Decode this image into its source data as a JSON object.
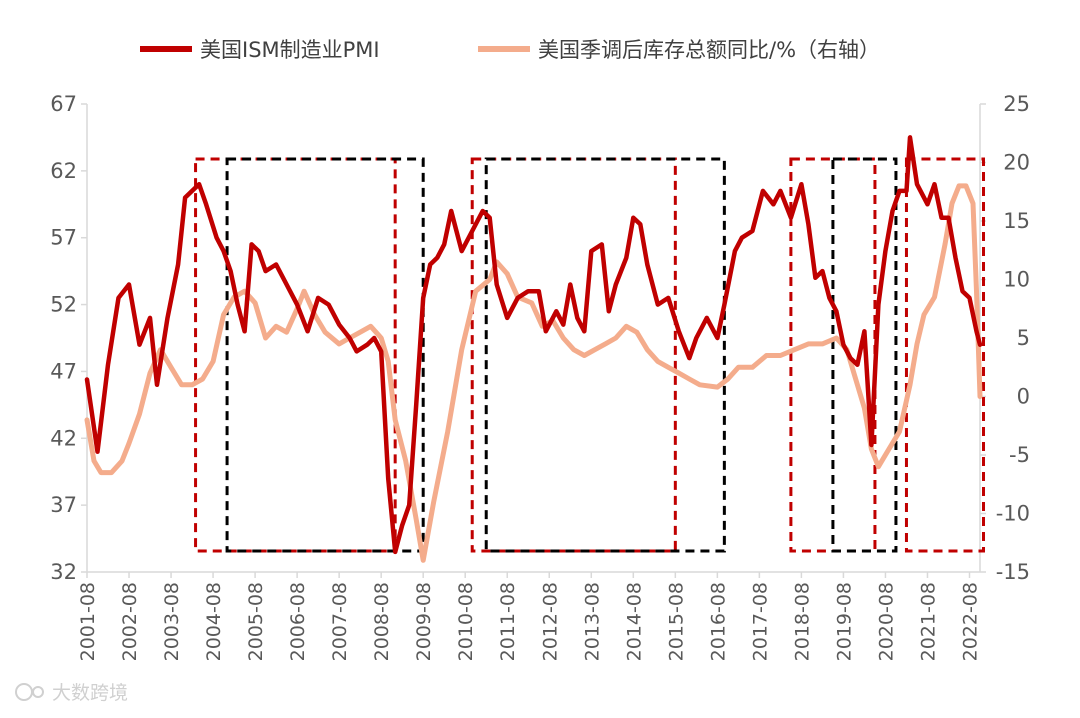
{
  "chart_data": {
    "type": "line",
    "colors": {
      "pmi": "#c00000",
      "inventory": "#f4ac8c",
      "box_red": "#c00000",
      "box_black": "#000000",
      "axis": "#d9d9d9",
      "tick_text": "#595959"
    },
    "left_axis": {
      "ylim": [
        32,
        67
      ],
      "ticks": [
        "32",
        "37",
        "42",
        "47",
        "52",
        "57",
        "62",
        "67"
      ]
    },
    "right_axis": {
      "ylim": [
        -15,
        25
      ],
      "ticks": [
        "-15",
        "-10",
        "-5",
        "0",
        "5",
        "10",
        "15",
        "20",
        "25"
      ]
    },
    "xlim": [
      "2001-08",
      "2022-11"
    ],
    "x_ticks": [
      "2001-08",
      "2002-08",
      "2003-08",
      "2004-08",
      "2005-08",
      "2006-08",
      "2007-08",
      "2008-08",
      "2009-08",
      "2010-08",
      "2011-08",
      "2012-08",
      "2013-08",
      "2014-08",
      "2015-08",
      "2016-08",
      "2017-08",
      "2018-08",
      "2019-08",
      "2020-08",
      "2021-08",
      "2022-08"
    ],
    "legend": {
      "position": "top-center"
    },
    "series": [
      {
        "name": "美国ISM制造业PMI",
        "axis": "left",
        "color": "#c00000",
        "points": [
          [
            "2001-08",
            46.4
          ],
          [
            "2001-11",
            41.0
          ],
          [
            "2002-02",
            47.5
          ],
          [
            "2002-05",
            52.5
          ],
          [
            "2002-08",
            53.5
          ],
          [
            "2002-11",
            49.0
          ],
          [
            "2003-02",
            51.0
          ],
          [
            "2003-04",
            46.0
          ],
          [
            "2003-07",
            51.0
          ],
          [
            "2003-10",
            55.0
          ],
          [
            "2003-12",
            60.0
          ],
          [
            "2004-02",
            60.5
          ],
          [
            "2004-04",
            61.0
          ],
          [
            "2004-06",
            59.5
          ],
          [
            "2004-09",
            57.0
          ],
          [
            "2004-11",
            56.0
          ],
          [
            "2005-01",
            54.5
          ],
          [
            "2005-03",
            52.0
          ],
          [
            "2005-05",
            50.0
          ],
          [
            "2005-07",
            56.5
          ],
          [
            "2005-09",
            56.0
          ],
          [
            "2005-11",
            54.5
          ],
          [
            "2006-02",
            55.0
          ],
          [
            "2006-05",
            53.5
          ],
          [
            "2006-08",
            52.0
          ],
          [
            "2006-11",
            50.0
          ],
          [
            "2007-02",
            52.5
          ],
          [
            "2007-05",
            52.0
          ],
          [
            "2007-08",
            50.5
          ],
          [
            "2007-11",
            49.5
          ],
          [
            "2008-01",
            48.5
          ],
          [
            "2008-04",
            49.0
          ],
          [
            "2008-06",
            49.5
          ],
          [
            "2008-08",
            48.5
          ],
          [
            "2008-10",
            39.0
          ],
          [
            "2008-12",
            33.5
          ],
          [
            "2009-02",
            35.5
          ],
          [
            "2009-04",
            37.0
          ],
          [
            "2009-06",
            44.5
          ],
          [
            "2009-08",
            52.5
          ],
          [
            "2009-10",
            55.0
          ],
          [
            "2009-12",
            55.5
          ],
          [
            "2010-02",
            56.5
          ],
          [
            "2010-04",
            59.0
          ],
          [
            "2010-07",
            56.0
          ],
          [
            "2010-10",
            57.5
          ],
          [
            "2011-01",
            59.0
          ],
          [
            "2011-03",
            58.5
          ],
          [
            "2011-05",
            53.5
          ],
          [
            "2011-08",
            51.0
          ],
          [
            "2011-11",
            52.5
          ],
          [
            "2012-02",
            53.0
          ],
          [
            "2012-05",
            53.0
          ],
          [
            "2012-07",
            50.0
          ],
          [
            "2012-10",
            51.5
          ],
          [
            "2012-12",
            50.5
          ],
          [
            "2013-02",
            53.5
          ],
          [
            "2013-04",
            51.0
          ],
          [
            "2013-06",
            50.0
          ],
          [
            "2013-08",
            56.0
          ],
          [
            "2013-11",
            56.5
          ],
          [
            "2014-01",
            51.5
          ],
          [
            "2014-03",
            53.5
          ],
          [
            "2014-06",
            55.5
          ],
          [
            "2014-08",
            58.5
          ],
          [
            "2014-10",
            58.0
          ],
          [
            "2014-12",
            55.0
          ],
          [
            "2015-03",
            52.0
          ],
          [
            "2015-06",
            52.5
          ],
          [
            "2015-09",
            50.0
          ],
          [
            "2015-12",
            48.0
          ],
          [
            "2016-02",
            49.5
          ],
          [
            "2016-05",
            51.0
          ],
          [
            "2016-08",
            49.5
          ],
          [
            "2016-10",
            52.0
          ],
          [
            "2017-01",
            56.0
          ],
          [
            "2017-03",
            57.0
          ],
          [
            "2017-06",
            57.5
          ],
          [
            "2017-09",
            60.5
          ],
          [
            "2017-12",
            59.5
          ],
          [
            "2018-02",
            60.5
          ],
          [
            "2018-05",
            58.5
          ],
          [
            "2018-08",
            61.0
          ],
          [
            "2018-10",
            58.0
          ],
          [
            "2018-12",
            54.0
          ],
          [
            "2019-02",
            54.5
          ],
          [
            "2019-04",
            52.5
          ],
          [
            "2019-06",
            51.5
          ],
          [
            "2019-08",
            49.0
          ],
          [
            "2019-10",
            48.0
          ],
          [
            "2019-12",
            47.5
          ],
          [
            "2020-02",
            50.0
          ],
          [
            "2020-04",
            41.5
          ],
          [
            "2020-06",
            52.0
          ],
          [
            "2020-08",
            56.0
          ],
          [
            "2020-10",
            59.0
          ],
          [
            "2020-12",
            60.5
          ],
          [
            "2021-02",
            60.5
          ],
          [
            "2021-03",
            64.5
          ],
          [
            "2021-05",
            61.0
          ],
          [
            "2021-08",
            59.5
          ],
          [
            "2021-10",
            61.0
          ],
          [
            "2021-12",
            58.5
          ],
          [
            "2022-02",
            58.5
          ],
          [
            "2022-04",
            55.5
          ],
          [
            "2022-06",
            53.0
          ],
          [
            "2022-08",
            52.5
          ],
          [
            "2022-10",
            50.0
          ],
          [
            "2022-11",
            49.0
          ]
        ]
      },
      {
        "name": "美国季调后库存总额同比/%（右轴）",
        "axis": "right",
        "color": "#f4ac8c",
        "points": [
          [
            "2001-08",
            -2.0
          ],
          [
            "2001-10",
            -5.5
          ],
          [
            "2001-12",
            -6.5
          ],
          [
            "2002-03",
            -6.5
          ],
          [
            "2002-06",
            -5.5
          ],
          [
            "2002-08",
            -4.0
          ],
          [
            "2002-11",
            -1.5
          ],
          [
            "2003-02",
            2.0
          ],
          [
            "2003-05",
            4.0
          ],
          [
            "2003-08",
            2.5
          ],
          [
            "2003-11",
            1.0
          ],
          [
            "2004-02",
            1.0
          ],
          [
            "2004-05",
            1.5
          ],
          [
            "2004-08",
            3.0
          ],
          [
            "2004-11",
            7.0
          ],
          [
            "2005-02",
            8.5
          ],
          [
            "2005-05",
            9.0
          ],
          [
            "2005-08",
            8.0
          ],
          [
            "2005-11",
            5.0
          ],
          [
            "2006-02",
            6.0
          ],
          [
            "2006-05",
            5.5
          ],
          [
            "2006-08",
            7.5
          ],
          [
            "2006-10",
            9.0
          ],
          [
            "2007-01",
            7.0
          ],
          [
            "2007-04",
            5.5
          ],
          [
            "2007-08",
            4.5
          ],
          [
            "2007-11",
            5.0
          ],
          [
            "2008-02",
            5.5
          ],
          [
            "2008-05",
            6.0
          ],
          [
            "2008-08",
            5.0
          ],
          [
            "2008-10",
            3.0
          ],
          [
            "2008-12",
            -2.0
          ],
          [
            "2009-03",
            -5.5
          ],
          [
            "2009-06",
            -10.5
          ],
          [
            "2009-08",
            -14.0
          ],
          [
            "2009-11",
            -9.0
          ],
          [
            "2010-03",
            -3.0
          ],
          [
            "2010-07",
            4.0
          ],
          [
            "2010-11",
            9.0
          ],
          [
            "2011-03",
            10.0
          ],
          [
            "2011-05",
            11.5
          ],
          [
            "2011-08",
            10.5
          ],
          [
            "2011-11",
            8.5
          ],
          [
            "2012-03",
            8.0
          ],
          [
            "2012-06",
            6.0
          ],
          [
            "2012-09",
            6.5
          ],
          [
            "2012-12",
            5.0
          ],
          [
            "2013-03",
            4.0
          ],
          [
            "2013-06",
            3.5
          ],
          [
            "2013-09",
            4.0
          ],
          [
            "2013-12",
            4.5
          ],
          [
            "2014-03",
            5.0
          ],
          [
            "2014-06",
            6.0
          ],
          [
            "2014-09",
            5.5
          ],
          [
            "2014-12",
            4.0
          ],
          [
            "2015-03",
            3.0
          ],
          [
            "2015-06",
            2.5
          ],
          [
            "2015-09",
            2.0
          ],
          [
            "2015-12",
            1.5
          ],
          [
            "2016-03",
            1.0
          ],
          [
            "2016-08",
            0.8
          ],
          [
            "2016-11",
            1.5
          ],
          [
            "2017-02",
            2.5
          ],
          [
            "2017-06",
            2.5
          ],
          [
            "2017-10",
            3.5
          ],
          [
            "2018-02",
            3.5
          ],
          [
            "2018-06",
            4.0
          ],
          [
            "2018-10",
            4.5
          ],
          [
            "2019-02",
            4.5
          ],
          [
            "2019-06",
            5.0
          ],
          [
            "2019-09",
            4.0
          ],
          [
            "2019-11",
            2.0
          ],
          [
            "2020-02",
            -1.0
          ],
          [
            "2020-04",
            -4.5
          ],
          [
            "2020-06",
            -6.0
          ],
          [
            "2020-09",
            -4.5
          ],
          [
            "2020-12",
            -3.0
          ],
          [
            "2021-03",
            1.0
          ],
          [
            "2021-05",
            4.5
          ],
          [
            "2021-07",
            7.0
          ],
          [
            "2021-10",
            8.5
          ],
          [
            "2022-01",
            13.0
          ],
          [
            "2022-03",
            16.5
          ],
          [
            "2022-05",
            18.0
          ],
          [
            "2022-07",
            18.0
          ],
          [
            "2022-09",
            16.5
          ],
          [
            "2022-10",
            9.0
          ],
          [
            "2022-11",
            0.0
          ]
        ]
      }
    ],
    "boxes": [
      {
        "color": "red",
        "from": "2004-03",
        "to": "2008-12",
        "y_top": 20.3,
        "y_bottom": -13.2
      },
      {
        "color": "black",
        "from": "2004-12",
        "to": "2009-08",
        "y_top": 20.3,
        "y_bottom": -13.2
      },
      {
        "color": "red",
        "from": "2010-10",
        "to": "2015-08",
        "y_top": 20.3,
        "y_bottom": -13.2
      },
      {
        "color": "black",
        "from": "2011-02",
        "to": "2016-10",
        "y_top": 20.3,
        "y_bottom": -13.2
      },
      {
        "color": "red",
        "from": "2018-05",
        "to": "2020-05",
        "y_top": 20.3,
        "y_bottom": -13.2
      },
      {
        "color": "black",
        "from": "2019-05",
        "to": "2020-11",
        "y_top": 20.3,
        "y_bottom": -13.2
      },
      {
        "color": "red",
        "from": "2021-02",
        "to": "2022-12",
        "y_top": 20.3,
        "y_bottom": -13.2
      }
    ]
  },
  "watermark": {
    "text": "大数跨境"
  }
}
